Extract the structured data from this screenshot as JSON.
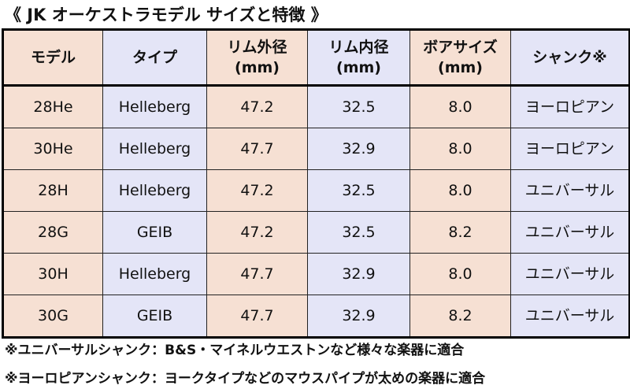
{
  "title": "《 JK オーケストラモデル サイズと特徴 》",
  "table": {
    "headers": [
      {
        "line1": "モデル",
        "line2": ""
      },
      {
        "line1": "タイプ",
        "line2": ""
      },
      {
        "line1": "リム外径",
        "line2": "(mm)"
      },
      {
        "line1": "リム内径",
        "line2": "(mm)"
      },
      {
        "line1": "ボアサイズ",
        "line2": "(mm)"
      },
      {
        "line1": "シャンク※",
        "line2": ""
      }
    ],
    "rows": [
      [
        "28He",
        "Helleberg",
        "47.2",
        "32.5",
        "8.0",
        "ヨーロピアン"
      ],
      [
        "30He",
        "Helleberg",
        "47.7",
        "32.9",
        "8.0",
        "ヨーロピアン"
      ],
      [
        "28H",
        "Helleberg",
        "47.2",
        "32.5",
        "8.0",
        "ユニバーサル"
      ],
      [
        "28G",
        "GEIB",
        "47.2",
        "32.5",
        "8.2",
        "ユニバーサル"
      ],
      [
        "30H",
        "Helleberg",
        "47.7",
        "32.9",
        "8.0",
        "ユニバーサル"
      ],
      [
        "30G",
        "GEIB",
        "47.7",
        "32.9",
        "8.2",
        "ユニバーサル"
      ]
    ]
  },
  "notes": [
    "※ユニバーサルシャンク：B&S・マイネルウエストンなど様々な楽器に適合",
    "※ヨーロピアンシャンク：ヨークタイプなどのマウスパイプが太めの楽器に適合"
  ],
  "colors": {
    "peach": "#f6e0d3",
    "lavender": "#e4e5f7"
  }
}
